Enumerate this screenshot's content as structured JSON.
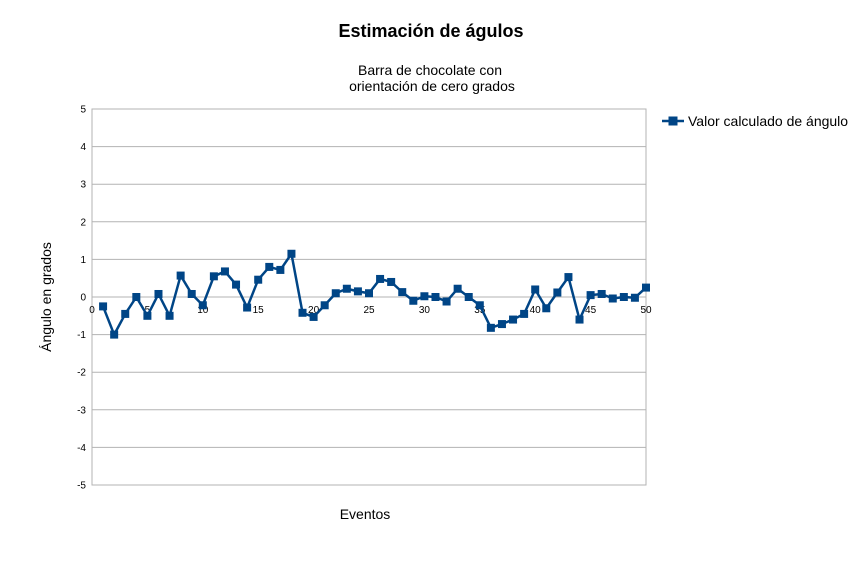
{
  "chart_data": {
    "type": "line",
    "title": "Estimación de águlos",
    "subtitle_lines": [
      "Barra de chocolate con",
      "orientación de cero grados"
    ],
    "xlabel": "Eventos",
    "ylabel": "Ángulo en grados",
    "xlim": [
      0,
      50
    ],
    "ylim": [
      -5,
      5
    ],
    "x_ticks": [
      0,
      5,
      10,
      15,
      20,
      25,
      30,
      35,
      40,
      45,
      50
    ],
    "y_ticks": [
      5,
      4,
      3,
      2,
      1,
      0,
      -1,
      -2,
      -3,
      -4,
      -5
    ],
    "grid": true,
    "legend_position": "right",
    "series": [
      {
        "name": "Valor calculado de ángulo",
        "color": "#004586",
        "marker": "square",
        "x": [
          1,
          2,
          3,
          4,
          5,
          6,
          7,
          8,
          9,
          10,
          11,
          12,
          13,
          14,
          15,
          16,
          17,
          18,
          19,
          20,
          21,
          22,
          23,
          24,
          25,
          26,
          27,
          28,
          29,
          30,
          31,
          32,
          33,
          34,
          35,
          36,
          37,
          38,
          39,
          40,
          41,
          42,
          43,
          44,
          45,
          46,
          47,
          48,
          49,
          50
        ],
        "y": [
          -0.25,
          -1.0,
          -0.45,
          0.0,
          -0.5,
          0.08,
          -0.5,
          0.57,
          0.08,
          -0.22,
          0.55,
          0.68,
          0.33,
          -0.28,
          0.46,
          0.8,
          0.72,
          1.15,
          -0.42,
          -0.53,
          -0.22,
          0.1,
          0.22,
          0.15,
          0.1,
          0.48,
          0.4,
          0.13,
          -0.1,
          0.02,
          0.0,
          -0.12,
          0.22,
          0.0,
          -0.22,
          -0.82,
          -0.72,
          -0.6,
          -0.45,
          0.2,
          -0.3,
          0.12,
          0.53,
          -0.6,
          0.05,
          0.08,
          -0.04,
          0.0,
          -0.02,
          0.25
        ]
      }
    ]
  }
}
